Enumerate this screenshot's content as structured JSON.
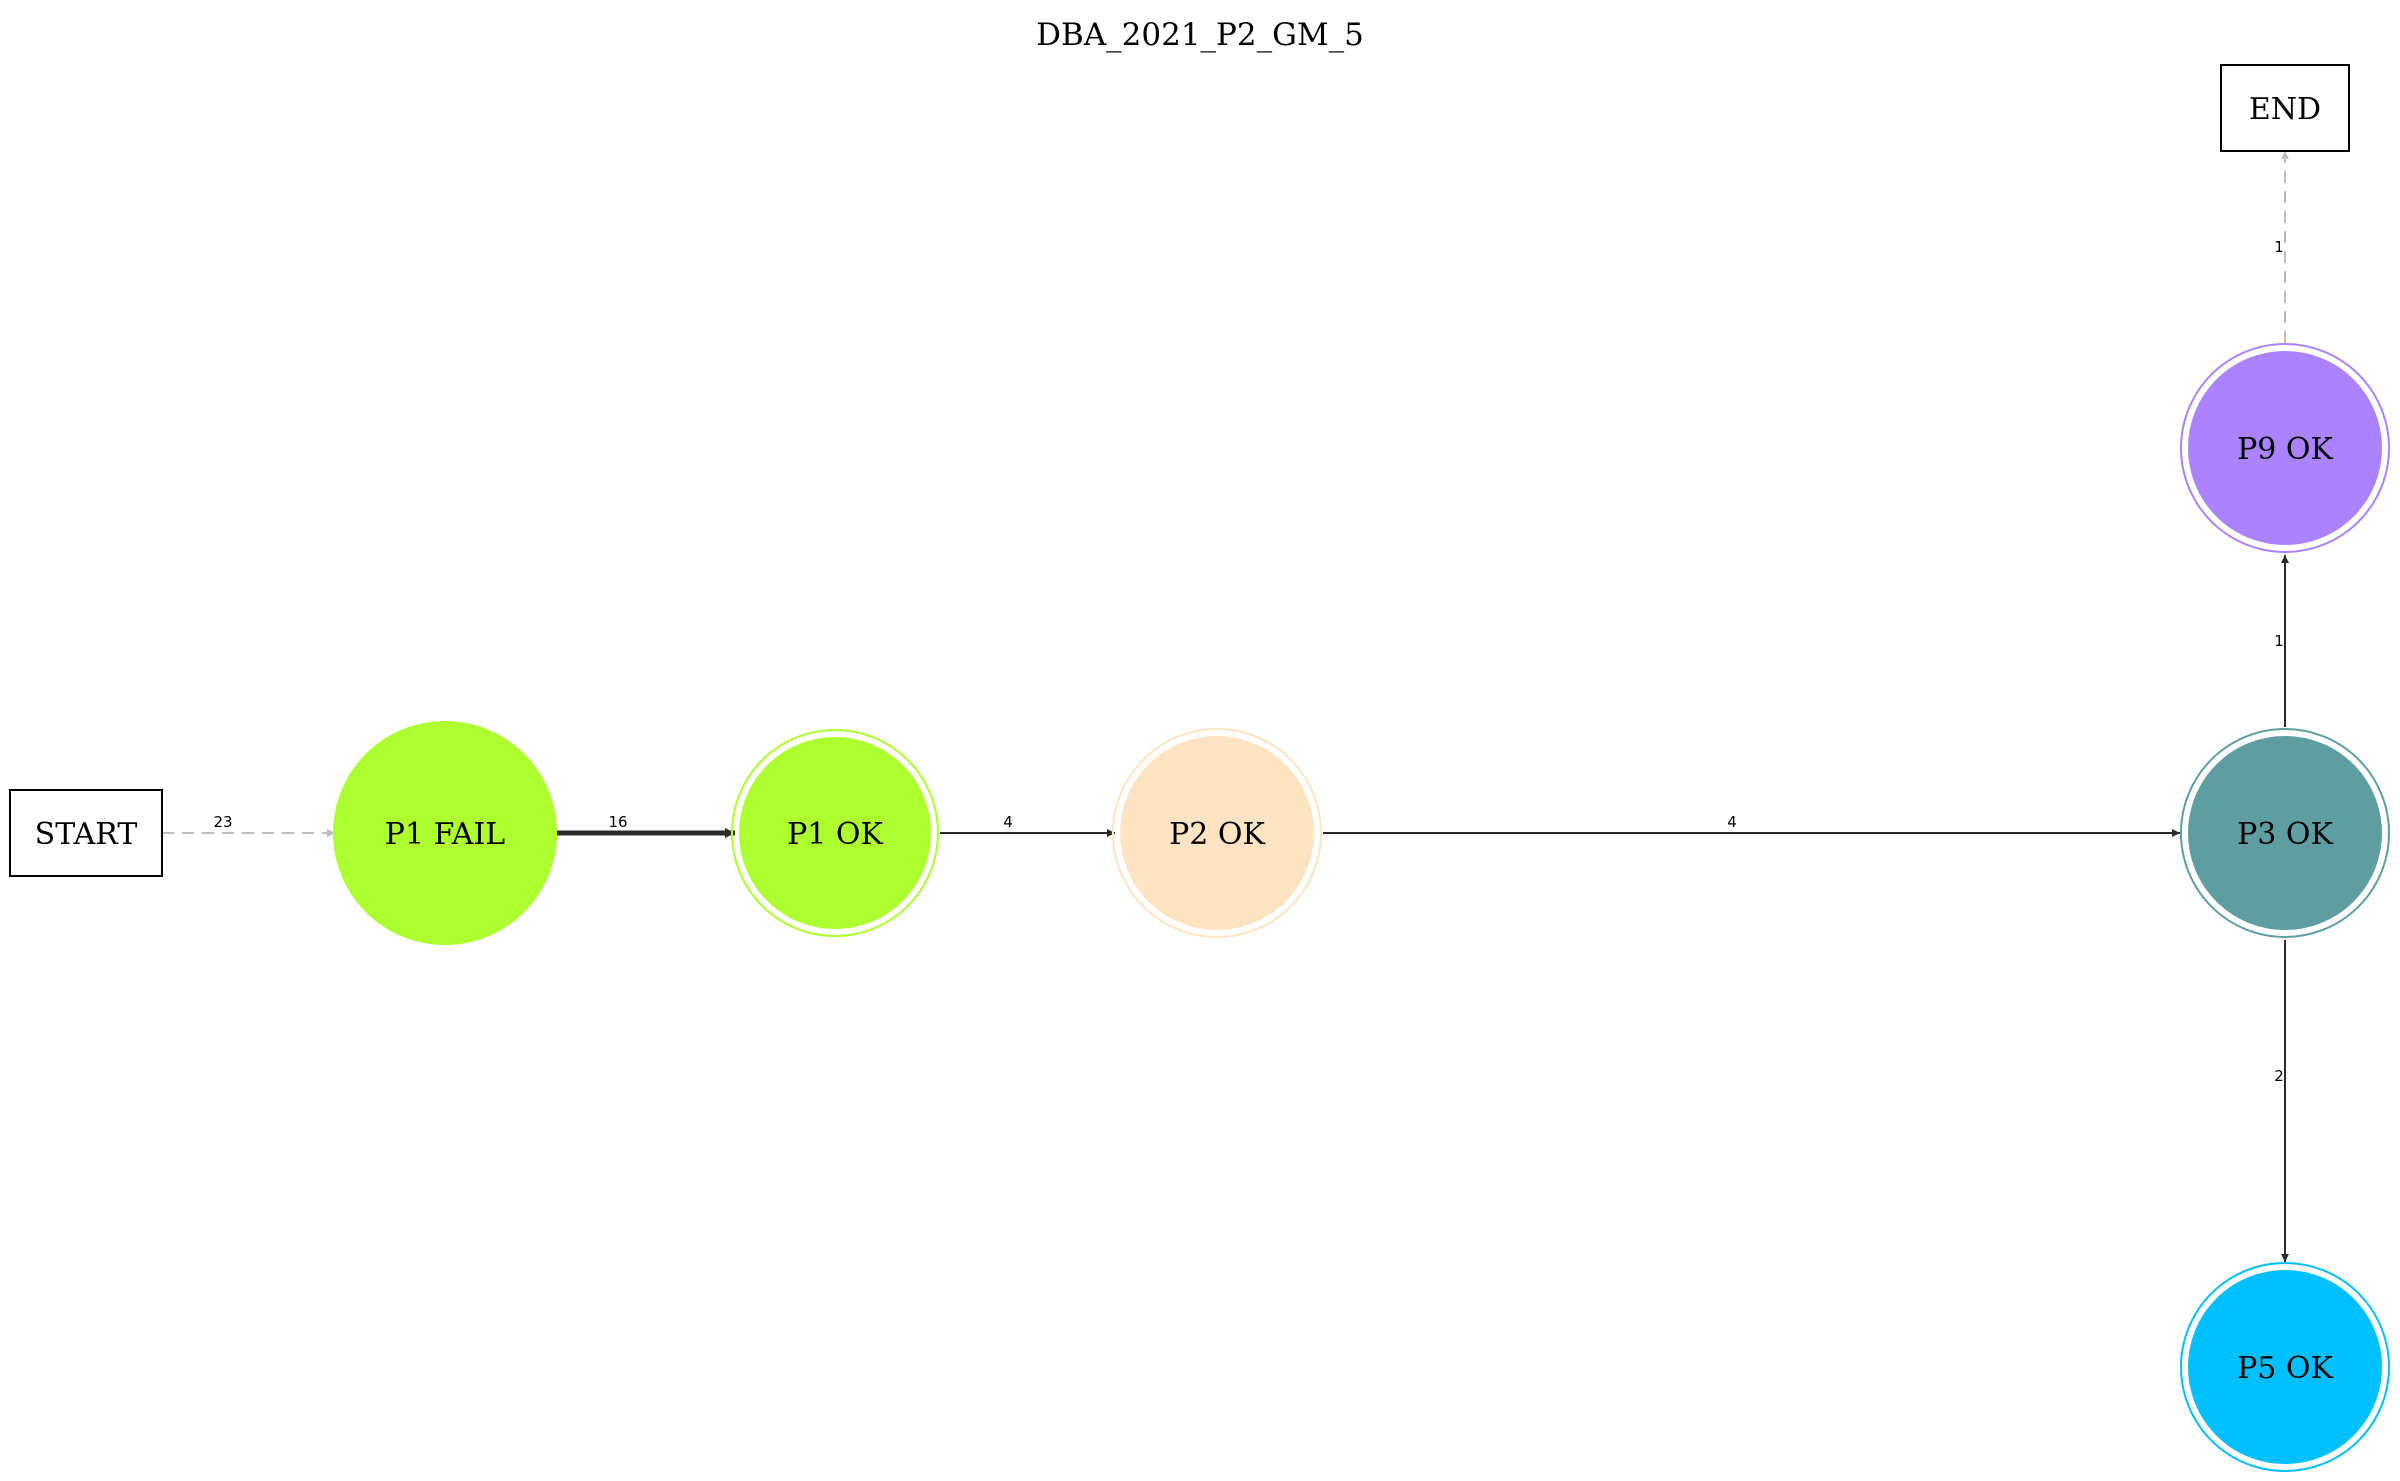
{
  "title": "DBA_2021_P2_GM_5",
  "nodes": {
    "start": {
      "label": "START",
      "shape": "box"
    },
    "end": {
      "label": "END",
      "shape": "box"
    },
    "p1fail": {
      "label": "P1 FAIL",
      "shape": "circle",
      "fill": "#adff2f",
      "stroke": "#adff2f"
    },
    "p1ok": {
      "label": "P1 OK",
      "shape": "doublecircle",
      "fill": "#adff2f",
      "stroke": "#adff2f"
    },
    "p2ok": {
      "label": "P2 OK",
      "shape": "doublecircle",
      "fill": "#ffe4c4",
      "stroke": "#ffe4c4"
    },
    "p3ok": {
      "label": "P3 OK",
      "shape": "doublecircle",
      "fill": "#5f9ea0",
      "stroke": "#5f9ea0"
    },
    "p9ok": {
      "label": "P9 OK",
      "shape": "doublecircle",
      "fill": "#ab82ff",
      "stroke": "#ab82ff"
    },
    "p5ok": {
      "label": "P5 OK",
      "shape": "doublecircle",
      "fill": "#00bfff",
      "stroke": "#00bfff"
    }
  },
  "edges": {
    "start_p1fail": {
      "label": "23",
      "style": "dashed",
      "color": "#bdbdbd"
    },
    "p1fail_p1ok": {
      "label": "16",
      "style": "bold",
      "color": "#2b2b2b"
    },
    "p1ok_p2ok": {
      "label": "4",
      "style": "solid",
      "color": "#2b2b2b"
    },
    "p2ok_p3ok": {
      "label": "4",
      "style": "solid",
      "color": "#2b2b2b"
    },
    "p3ok_p9ok": {
      "label": "1",
      "style": "solid",
      "color": "#2b2b2b"
    },
    "p3ok_p5ok": {
      "label": "2",
      "style": "solid",
      "color": "#2b2b2b"
    },
    "p9ok_end": {
      "label": "1",
      "style": "dashed",
      "color": "#bdbdbd"
    }
  }
}
